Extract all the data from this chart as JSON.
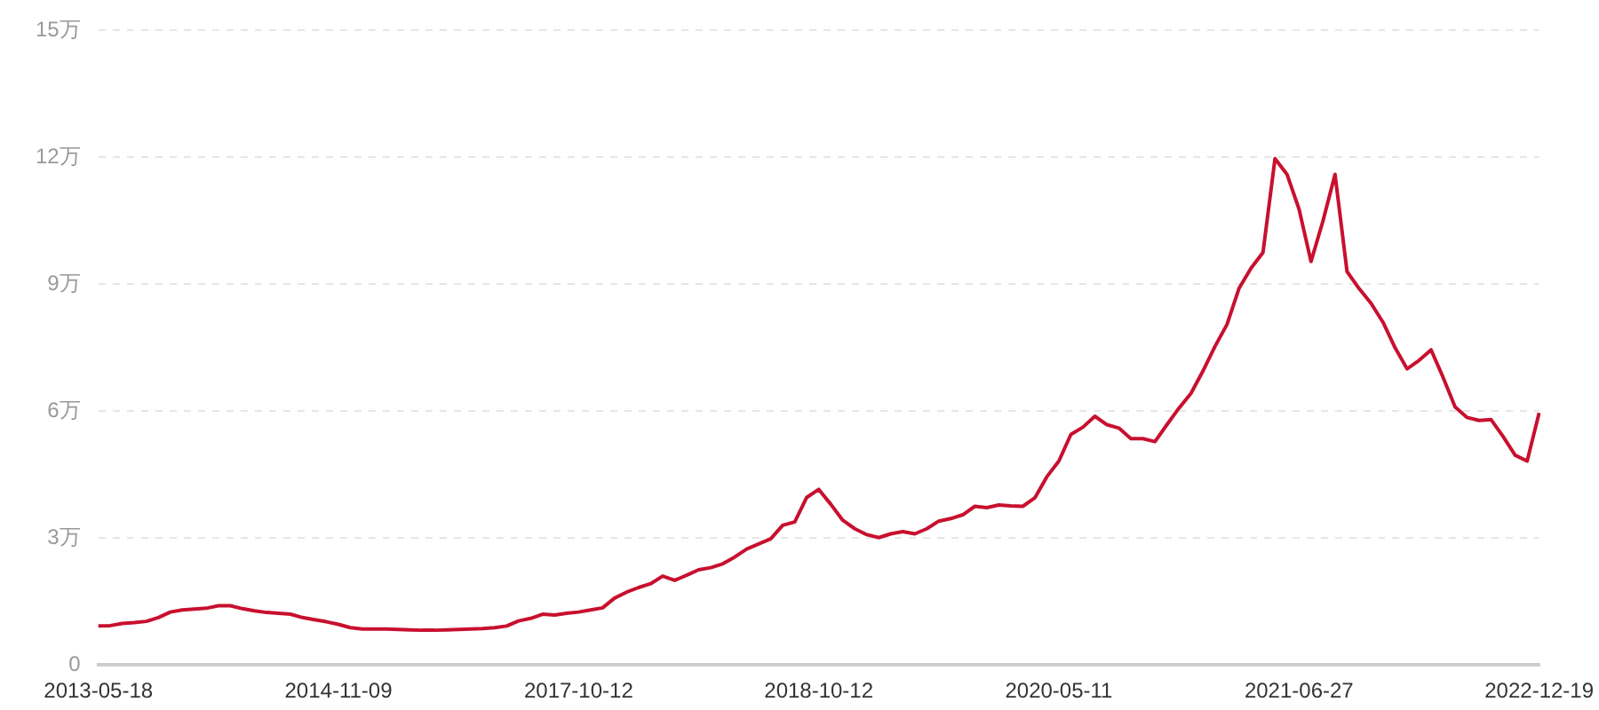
{
  "chart_data": {
    "type": "line",
    "categories": [
      "2013-05-18",
      null,
      null,
      null,
      null,
      null,
      null,
      null,
      null,
      null,
      null,
      null,
      null,
      null,
      null,
      null,
      null,
      null,
      null,
      null,
      "2014-11-09",
      null,
      null,
      null,
      null,
      null,
      null,
      null,
      null,
      null,
      null,
      null,
      null,
      null,
      null,
      null,
      null,
      null,
      null,
      null,
      "2017-10-12",
      null,
      null,
      null,
      null,
      null,
      null,
      null,
      null,
      null,
      null,
      null,
      null,
      null,
      null,
      null,
      null,
      null,
      null,
      null,
      "2018-10-12",
      null,
      null,
      null,
      null,
      null,
      null,
      null,
      null,
      null,
      null,
      null,
      null,
      null,
      null,
      null,
      null,
      null,
      null,
      null,
      "2020-05-11",
      null,
      null,
      null,
      null,
      null,
      null,
      null,
      null,
      null,
      null,
      null,
      null,
      null,
      null,
      null,
      null,
      null,
      null,
      null,
      "2021-06-27",
      null,
      null,
      null,
      null,
      null,
      null,
      null,
      null,
      null,
      null,
      null,
      null,
      null,
      null,
      null,
      null,
      null,
      null,
      null,
      "2022-12-19"
    ],
    "series": [
      {
        "color": "#c8102e",
        "values": [
          0.92,
          0.93,
          0.98,
          1.0,
          1.03,
          1.12,
          1.25,
          1.3,
          1.32,
          1.34,
          1.4,
          1.4,
          1.33,
          1.28,
          1.24,
          1.22,
          1.2,
          1.12,
          1.07,
          1.02,
          0.96,
          0.88,
          0.85,
          0.85,
          0.85,
          0.84,
          0.83,
          0.82,
          0.82,
          0.83,
          0.84,
          0.85,
          0.86,
          0.88,
          0.92,
          1.04,
          1.1,
          1.2,
          1.18,
          1.22,
          1.25,
          1.3,
          1.35,
          1.58,
          1.72,
          1.83,
          1.92,
          2.1,
          2.0,
          2.12,
          2.25,
          2.3,
          2.39,
          2.55,
          2.74,
          2.86,
          2.98,
          3.3,
          3.38,
          3.96,
          4.15,
          3.8,
          3.42,
          3.22,
          3.08,
          3.01,
          3.1,
          3.15,
          3.1,
          3.22,
          3.4,
          3.46,
          3.55,
          3.75,
          3.72,
          3.78,
          3.76,
          3.75,
          3.95,
          4.45,
          4.82,
          5.45,
          5.62,
          5.88,
          5.68,
          5.6,
          5.35,
          5.35,
          5.28,
          5.68,
          6.07,
          6.42,
          6.95,
          7.53,
          8.05,
          8.9,
          9.38,
          9.75,
          11.97,
          11.6,
          10.78,
          9.54,
          10.5,
          11.6,
          9.3,
          8.9,
          8.55,
          8.1,
          7.5,
          7.0,
          7.2,
          7.45,
          6.8,
          6.1,
          5.85,
          5.78,
          5.8,
          5.4,
          4.96,
          4.82,
          5.96
        ]
      }
    ],
    "ylim": [
      0,
      15
    ],
    "yticks": [
      {
        "value": 0,
        "label": "0"
      },
      {
        "value": 3,
        "label": "3万"
      },
      {
        "value": 6,
        "label": "6万"
      },
      {
        "value": 9,
        "label": "9万"
      },
      {
        "value": 12,
        "label": "12万"
      },
      {
        "value": 15,
        "label": "15万"
      }
    ],
    "grid": "y",
    "legend": false,
    "marker": "none",
    "line_style": "solid"
  }
}
